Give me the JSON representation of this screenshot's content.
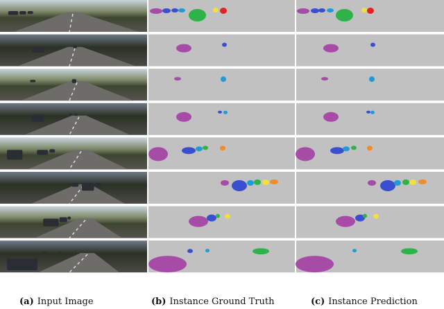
{
  "captions": [
    {
      "label": "(a)",
      "text": "Input Image"
    },
    {
      "label": "(b)",
      "text": "Instance Ground Truth"
    },
    {
      "label": "(c)",
      "text": "Instance Prediction"
    }
  ]
}
